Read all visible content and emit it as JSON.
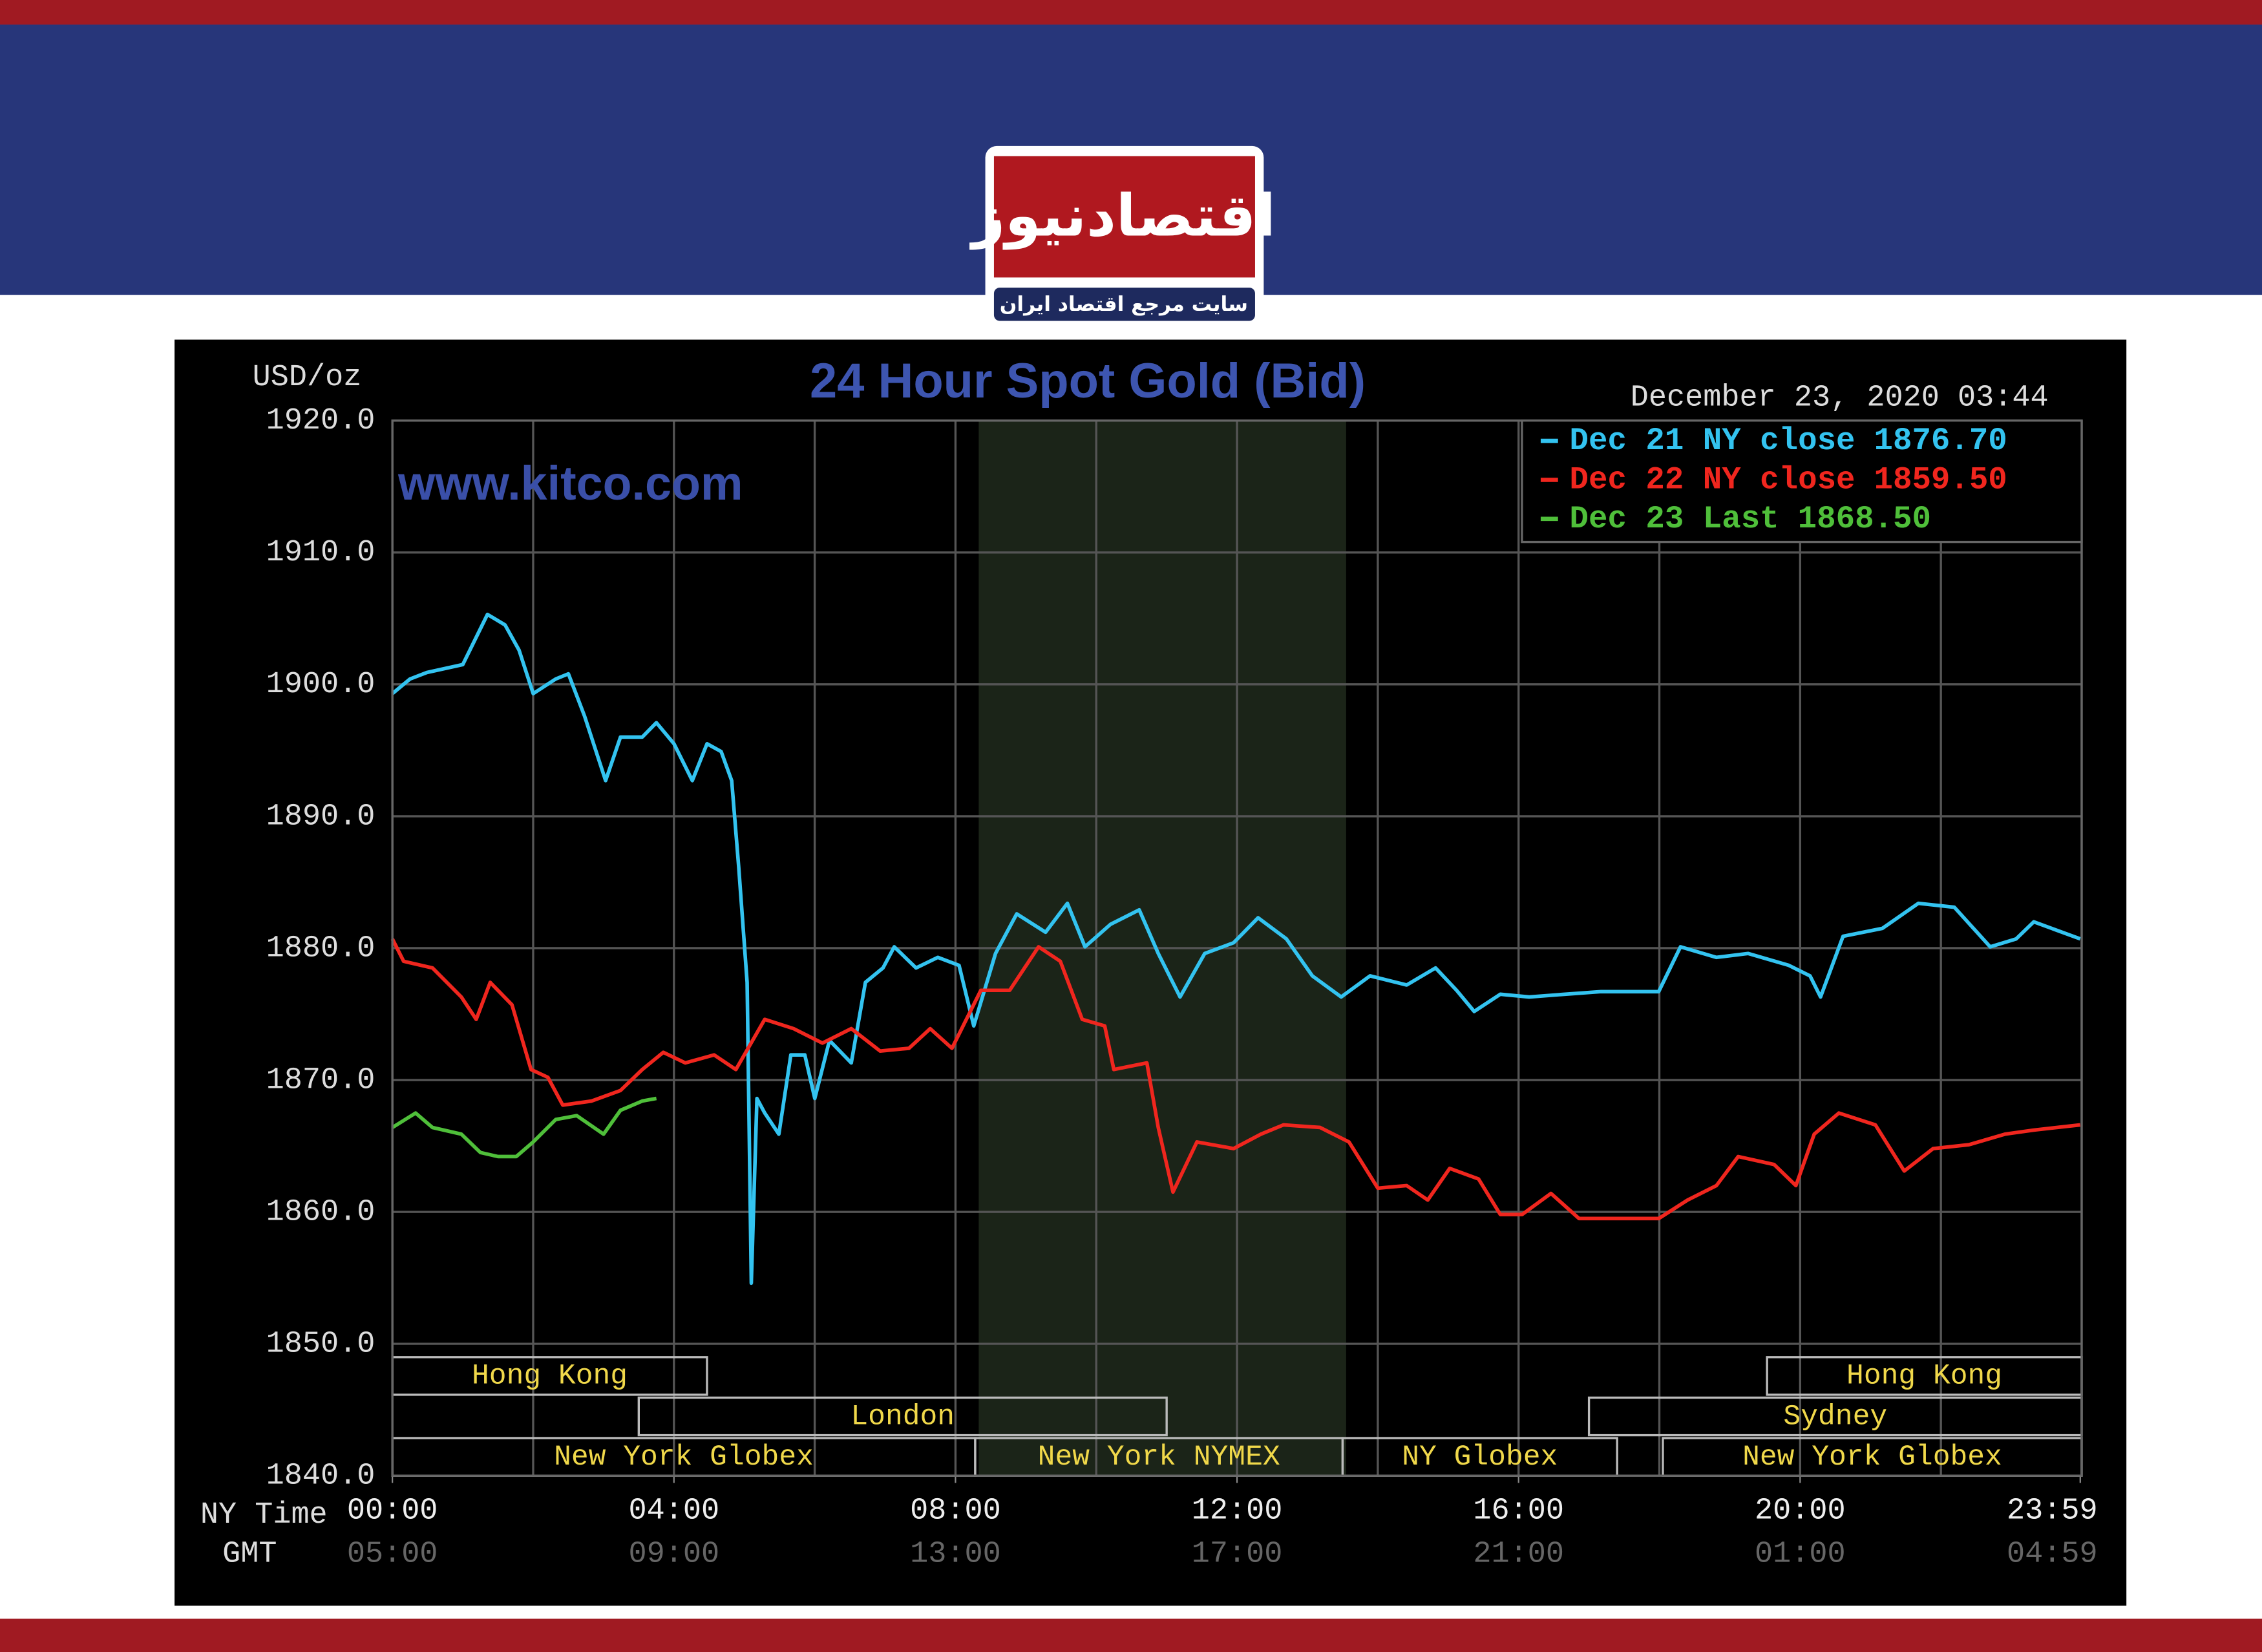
{
  "header": {
    "logo": "اقتصادنیوز",
    "tagline": "سایت مرجع اقتصاد ایران"
  },
  "chart_data": {
    "type": "line",
    "title": "24 Hour Spot Gold (Bid)",
    "watermark": "www.kitco.com",
    "y_label": "USD/oz",
    "timestamp": "December 23, 2020 03:44",
    "x_label": "NY Time",
    "x2_label": "GMT",
    "xlim": [
      0,
      24
    ],
    "ylim": [
      1840,
      1920
    ],
    "xticks": [
      {
        "value": 0,
        "label": "00:00"
      },
      {
        "value": 4,
        "label": "04:00"
      },
      {
        "value": 8,
        "label": "08:00"
      },
      {
        "value": 12,
        "label": "12:00"
      },
      {
        "value": 16,
        "label": "16:00"
      },
      {
        "value": 20,
        "label": "20:00"
      },
      {
        "value": 23.98,
        "label": "23:59"
      }
    ],
    "x2ticks": [
      {
        "value": 0,
        "label": "05:00"
      },
      {
        "value": 4,
        "label": "09:00"
      },
      {
        "value": 8,
        "label": "13:00"
      },
      {
        "value": 12,
        "label": "17:00"
      },
      {
        "value": 16,
        "label": "21:00"
      },
      {
        "value": 20,
        "label": "01:00"
      },
      {
        "value": 23.98,
        "label": "04:59"
      }
    ],
    "x_gridlines": [
      0,
      2,
      4,
      6,
      8,
      10,
      12,
      14,
      16,
      18,
      20,
      22,
      24
    ],
    "yticks": [
      {
        "value": 1920,
        "label": "1920.0"
      },
      {
        "value": 1910,
        "label": "1910.0"
      },
      {
        "value": 1900,
        "label": "1900.0"
      },
      {
        "value": 1890,
        "label": "1890.0"
      },
      {
        "value": 1880,
        "label": "1880.0"
      },
      {
        "value": 1870,
        "label": "1870.0"
      },
      {
        "value": 1860,
        "label": "1860.0"
      },
      {
        "value": 1850,
        "label": "1850.0"
      },
      {
        "value": 1840,
        "label": "1840.0"
      }
    ],
    "grid": true,
    "shaded_range": [
      8.33,
      13.55
    ],
    "sessions": [
      [
        {
          "label": "Hong Kong",
          "start": 0,
          "end": 4.47
        },
        {
          "label": "Hong Kong",
          "start": 19.53,
          "end": 24
        }
      ],
      [
        {
          "label": "London",
          "start": 3.5,
          "end": 11.0
        },
        {
          "label": "Sydney",
          "start": 17.0,
          "end": 24
        }
      ],
      [
        {
          "label": "New York Globex",
          "start": 0,
          "end": 8.28
        },
        {
          "label": "New York NYMEX",
          "start": 8.28,
          "end": 13.5
        },
        {
          "label": "NY Globex",
          "start": 13.5,
          "end": 17.4
        },
        {
          "label": "New York Globex",
          "start": 18.05,
          "end": 24
        }
      ]
    ],
    "series": [
      {
        "name": "Dec 21 NY close",
        "legend_value": {
          "value": 1876.7,
          "label": "1876.70"
        },
        "color": "#33c3f0",
        "x": [
          0,
          0.25,
          0.49,
          1.0,
          1.35,
          1.6,
          1.8,
          2.0,
          2.32,
          2.5,
          2.73,
          3.03,
          3.24,
          3.55,
          3.75,
          4.0,
          4.26,
          4.47,
          4.67,
          4.82,
          4.92,
          5.04,
          5.1,
          5.18,
          5.29,
          5.49,
          5.66,
          5.86,
          6.0,
          6.21,
          6.52,
          6.72,
          6.97,
          7.13,
          7.44,
          7.75,
          8.05,
          8.26,
          8.57,
          8.87,
          9.28,
          9.59,
          9.84,
          10.2,
          10.61,
          10.88,
          11.19,
          11.54,
          11.95,
          12.3,
          12.7,
          13.07,
          13.48,
          13.89,
          14.41,
          14.82,
          15.12,
          15.37,
          15.74,
          16.15,
          16.66,
          17.17,
          17.99,
          18.3,
          18.81,
          19.26,
          19.84,
          20.14,
          20.29,
          20.61,
          21.17,
          21.68,
          22.19,
          22.7,
          23.07,
          23.32,
          23.98
        ],
        "values": [
          1899.3,
          1900.4,
          1900.9,
          1901.5,
          1905.3,
          1904.5,
          1902.6,
          1899.3,
          1900.4,
          1900.8,
          1897.6,
          1892.7,
          1896.0,
          1896.0,
          1897.1,
          1895.5,
          1892.7,
          1895.5,
          1894.9,
          1892.7,
          1886.1,
          1877.4,
          1854.6,
          1868.6,
          1867.5,
          1865.9,
          1871.9,
          1871.9,
          1868.6,
          1873.0,
          1871.3,
          1877.4,
          1878.5,
          1880.1,
          1878.5,
          1879.3,
          1878.7,
          1874.1,
          1879.6,
          1882.6,
          1881.2,
          1883.4,
          1880.1,
          1881.8,
          1882.9,
          1879.6,
          1876.3,
          1879.6,
          1880.4,
          1882.3,
          1880.7,
          1877.9,
          1876.3,
          1877.9,
          1877.2,
          1878.5,
          1876.8,
          1875.2,
          1876.5,
          1876.3,
          1876.5,
          1876.7,
          1876.7,
          1880.1,
          1879.3,
          1879.6,
          1878.7,
          1877.9,
          1876.3,
          1880.9,
          1881.5,
          1883.4,
          1883.1,
          1880.1,
          1880.7,
          1882.0,
          1880.7
        ]
      },
      {
        "name": "Dec 22 NY close",
        "legend_value": {
          "value": 1859.5,
          "label": "1859.50"
        },
        "color": "#f0261e",
        "x": [
          0,
          0.16,
          0.57,
          0.98,
          1.19,
          1.39,
          1.7,
          1.97,
          2.21,
          2.42,
          2.83,
          3.24,
          3.55,
          3.85,
          4.16,
          4.57,
          4.88,
          5.29,
          5.7,
          6.11,
          6.52,
          6.93,
          7.34,
          7.64,
          7.95,
          8.36,
          8.77,
          9.18,
          9.49,
          9.8,
          10.12,
          10.25,
          10.72,
          10.88,
          11.09,
          11.43,
          11.95,
          12.34,
          12.66,
          13.18,
          13.59,
          14.0,
          14.41,
          14.71,
          15.02,
          15.43,
          15.74,
          16.05,
          16.46,
          16.86,
          17.99,
          18.4,
          18.81,
          19.12,
          19.63,
          19.94,
          20.2,
          20.55,
          21.07,
          21.48,
          21.89,
          22.4,
          22.91,
          23.32,
          23.98
        ],
        "values": [
          1880.7,
          1879.0,
          1878.5,
          1876.3,
          1874.6,
          1877.4,
          1875.7,
          1870.8,
          1870.2,
          1868.1,
          1868.4,
          1869.2,
          1870.8,
          1872.1,
          1871.3,
          1871.9,
          1870.8,
          1874.6,
          1873.9,
          1872.8,
          1873.9,
          1872.2,
          1872.4,
          1873.9,
          1872.4,
          1876.8,
          1876.8,
          1880.1,
          1879.0,
          1874.6,
          1874.1,
          1870.8,
          1871.3,
          1866.4,
          1861.5,
          1865.3,
          1864.8,
          1865.9,
          1866.6,
          1866.4,
          1865.3,
          1861.8,
          1862.0,
          1860.9,
          1863.3,
          1862.5,
          1859.8,
          1859.8,
          1861.4,
          1859.5,
          1859.5,
          1860.9,
          1862.0,
          1864.2,
          1863.6,
          1862.0,
          1865.9,
          1867.5,
          1866.6,
          1863.1,
          1864.8,
          1865.1,
          1865.9,
          1866.2,
          1866.6
        ]
      },
      {
        "name": "Dec 23 Last",
        "legend_value": {
          "value": 1868.5,
          "label": "1868.50"
        },
        "color": "#4fbf3a",
        "x": [
          0,
          0.33,
          0.57,
          0.98,
          1.25,
          1.5,
          1.76,
          2.0,
          2.32,
          2.62,
          3.0,
          3.24,
          3.55,
          3.75
        ],
        "values": [
          1866.4,
          1867.5,
          1866.4,
          1865.9,
          1864.5,
          1864.2,
          1864.2,
          1865.3,
          1867.0,
          1867.3,
          1865.9,
          1867.7,
          1868.4,
          1868.6
        ]
      }
    ]
  }
}
